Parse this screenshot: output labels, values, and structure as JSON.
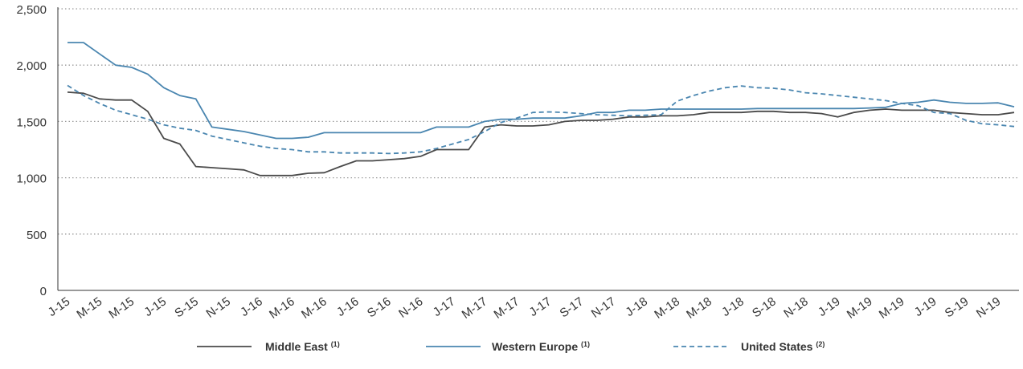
{
  "chart_data": {
    "type": "line",
    "title": "",
    "xlabel": "",
    "ylabel": "",
    "ylim": [
      0,
      2500
    ],
    "yticks": [
      0,
      500,
      1000,
      1500,
      2000,
      2500
    ],
    "ytick_labels": [
      "0",
      "500",
      "1,000",
      "1,500",
      "2,000",
      "2,500"
    ],
    "grid": "horizontal dotted",
    "legend_position": "bottom-center",
    "x_tick_labels": [
      "J-15",
      "M-15",
      "M-15",
      "J-15",
      "S-15",
      "N-15",
      "J-16",
      "M-16",
      "M-16",
      "J-16",
      "S-16",
      "N-16",
      "J-17",
      "M-17",
      "M-17",
      "J-17",
      "S-17",
      "N-17",
      "J-18",
      "M-18",
      "M-18",
      "J-18",
      "S-18",
      "N-18",
      "J-19",
      "M-19",
      "M-19",
      "J-19",
      "S-19",
      "N-19"
    ],
    "x_months": [
      "2015-01",
      "2015-02",
      "2015-03",
      "2015-04",
      "2015-05",
      "2015-06",
      "2015-07",
      "2015-08",
      "2015-09",
      "2015-10",
      "2015-11",
      "2015-12",
      "2016-01",
      "2016-02",
      "2016-03",
      "2016-04",
      "2016-05",
      "2016-06",
      "2016-07",
      "2016-08",
      "2016-09",
      "2016-10",
      "2016-11",
      "2016-12",
      "2017-01",
      "2017-02",
      "2017-03",
      "2017-04",
      "2017-05",
      "2017-06",
      "2017-07",
      "2017-08",
      "2017-09",
      "2017-10",
      "2017-11",
      "2017-12",
      "2018-01",
      "2018-02",
      "2018-03",
      "2018-04",
      "2018-05",
      "2018-06",
      "2018-07",
      "2018-08",
      "2018-09",
      "2018-10",
      "2018-11",
      "2018-12",
      "2019-01",
      "2019-02",
      "2019-03",
      "2019-04",
      "2019-05",
      "2019-06",
      "2019-07",
      "2019-08",
      "2019-09",
      "2019-10",
      "2019-11",
      "2019-12"
    ],
    "series": [
      {
        "name": "Middle East",
        "footnote": "(1)",
        "color": "#4a4a4a",
        "style": "solid",
        "values": [
          1760,
          1750,
          1700,
          1690,
          1690,
          1590,
          1350,
          1300,
          1100,
          1090,
          1080,
          1070,
          1020,
          1020,
          1020,
          1040,
          1045,
          1100,
          1150,
          1150,
          1160,
          1170,
          1190,
          1250,
          1250,
          1250,
          1450,
          1470,
          1460,
          1460,
          1470,
          1500,
          1510,
          1510,
          1520,
          1540,
          1540,
          1550,
          1550,
          1560,
          1580,
          1580,
          1580,
          1590,
          1590,
          1580,
          1580,
          1570,
          1540,
          1580,
          1600,
          1610,
          1600,
          1600,
          1600,
          1580,
          1570,
          1560,
          1560,
          1580
        ]
      },
      {
        "name": "Western Europe",
        "footnote": "(1)",
        "color": "#4a86b0",
        "style": "solid",
        "values": [
          2200,
          2200,
          2100,
          2000,
          1980,
          1920,
          1800,
          1730,
          1700,
          1450,
          1430,
          1410,
          1380,
          1350,
          1350,
          1360,
          1400,
          1400,
          1400,
          1400,
          1400,
          1400,
          1400,
          1450,
          1450,
          1450,
          1500,
          1520,
          1520,
          1530,
          1530,
          1530,
          1550,
          1580,
          1580,
          1600,
          1600,
          1610,
          1610,
          1610,
          1610,
          1610,
          1610,
          1615,
          1615,
          1615,
          1615,
          1615,
          1615,
          1615,
          1620,
          1625,
          1660,
          1670,
          1690,
          1670,
          1660,
          1660,
          1665,
          1630
        ]
      },
      {
        "name": "United States",
        "footnote": "(2)",
        "color": "#4a86b0",
        "style": "dashed",
        "values": [
          1820,
          1730,
          1660,
          1600,
          1560,
          1520,
          1470,
          1440,
          1420,
          1370,
          1340,
          1310,
          1280,
          1260,
          1250,
          1230,
          1230,
          1220,
          1220,
          1220,
          1215,
          1220,
          1230,
          1260,
          1300,
          1340,
          1410,
          1490,
          1530,
          1580,
          1585,
          1580,
          1570,
          1560,
          1555,
          1550,
          1555,
          1560,
          1680,
          1730,
          1770,
          1800,
          1815,
          1800,
          1795,
          1780,
          1755,
          1745,
          1730,
          1715,
          1700,
          1685,
          1660,
          1640,
          1580,
          1570,
          1510,
          1480,
          1470,
          1455
        ]
      }
    ]
  }
}
